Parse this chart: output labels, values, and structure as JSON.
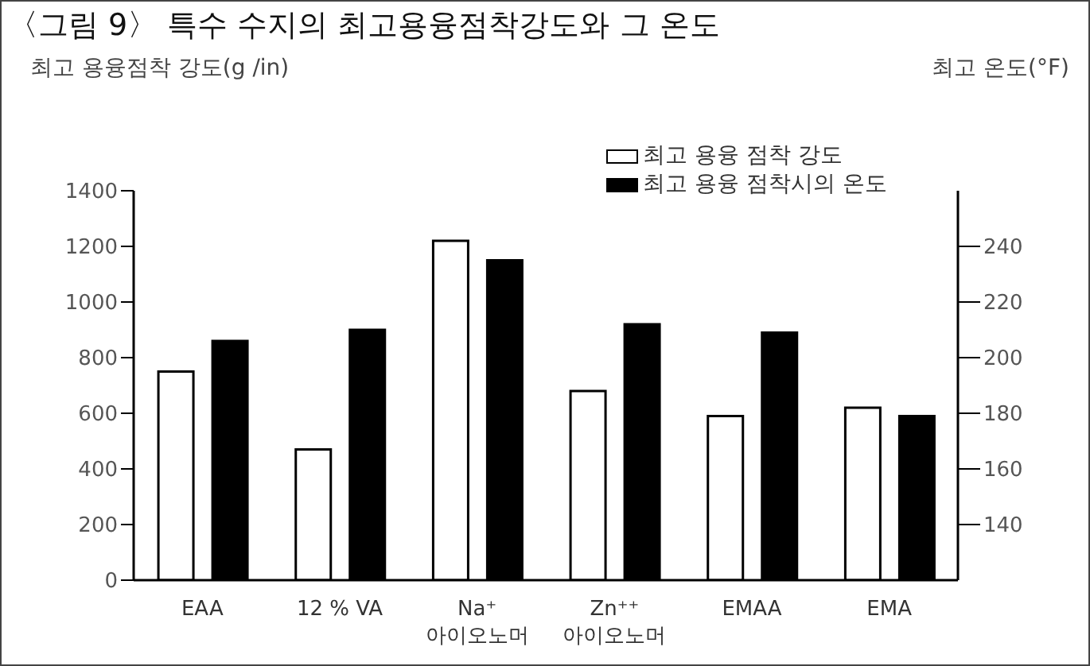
{
  "chart_data": {
    "type": "bar",
    "title": "〈그림 9〉 특수 수지의 최고용융점착강도와 그 온도",
    "ylabel": "최고 용융점착 강도(g /in)",
    "y2label": "최고 온도(°F)",
    "categories": [
      "EAA",
      "12 % VA",
      "Na⁺\n아이오노머",
      "Zn⁺⁺\n아이오노머",
      "EMAA",
      "EMA"
    ],
    "series": [
      {
        "name": "최고 용융 점착 강도",
        "color": "#ffffff",
        "values": [
          750,
          470,
          1220,
          680,
          590,
          620
        ]
      },
      {
        "name": "최고 용융 점착시의 온도",
        "color": "#000000",
        "axis": "y2",
        "values": [
          206,
          210,
          235,
          212,
          209,
          179
        ]
      }
    ],
    "ylim": [
      0,
      1400
    ],
    "yticks": [
      0,
      200,
      400,
      600,
      800,
      1000,
      1200,
      1400
    ],
    "y2lim": [
      120,
      260
    ],
    "y2ticks": [
      140,
      160,
      180,
      200,
      220,
      240
    ],
    "legend": "top right",
    "grid": false
  }
}
